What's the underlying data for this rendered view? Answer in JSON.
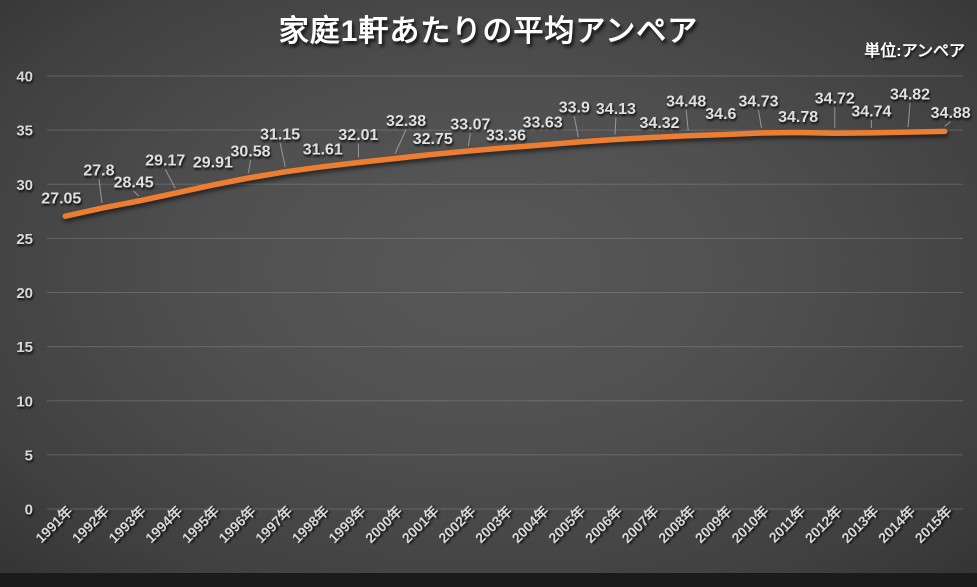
{
  "header": {
    "title": "家庭1軒あたりの平均アンペア",
    "unit_label": "単位:アンペア"
  },
  "chart_data": {
    "type": "line",
    "title": "家庭1軒あたりの平均アンペア",
    "unit": "単位:アンペア",
    "categories": [
      "1991年",
      "1992年",
      "1993年",
      "1994年",
      "1995年",
      "1996年",
      "1997年",
      "1998年",
      "1999年",
      "2000年",
      "2001年",
      "2002年",
      "2003年",
      "2004年",
      "2005年",
      "2006年",
      "2007年",
      "2008年",
      "2009年",
      "2010年",
      "2011年",
      "2012年",
      "2013年",
      "2014年",
      "2015年"
    ],
    "values": [
      27.05,
      27.8,
      28.45,
      29.17,
      29.91,
      30.58,
      31.15,
      31.61,
      32.01,
      32.38,
      32.75,
      33.07,
      33.36,
      33.63,
      33.9,
      34.13,
      34.32,
      34.48,
      34.6,
      34.73,
      34.78,
      34.72,
      34.74,
      34.82,
      34.88
    ],
    "y_ticks": [
      0,
      5,
      10,
      15,
      20,
      25,
      30,
      35,
      40
    ],
    "ylim": [
      0,
      40
    ],
    "grid": true,
    "legend": "none",
    "data_labels": true,
    "line_color": "#ED7D31",
    "tick_label_color": "#D9D9D9",
    "data_label_color": "#E0E0E0",
    "gridline_color": "#909090",
    "title_color": "#FFFFFF",
    "background_center": "#565656",
    "background_edge": "#272727"
  }
}
